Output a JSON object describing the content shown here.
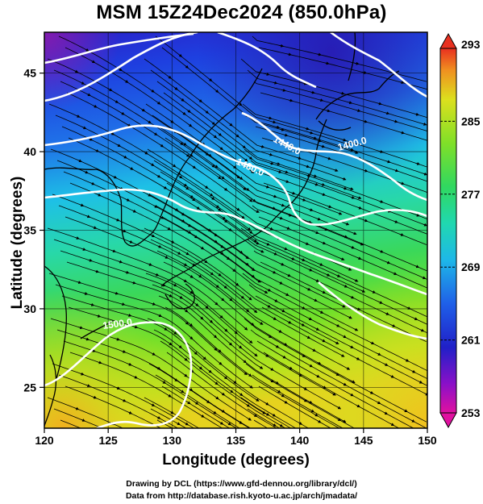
{
  "title": "MSM 15Z24Dec2024 (850.0hPa)",
  "axes": {
    "x_label": "Longitude (degrees)",
    "y_label": "Latitude  (degrees)",
    "x_ticks": [
      "120",
      "125",
      "130",
      "135",
      "140",
      "145",
      "150"
    ],
    "y_ticks": [
      "25",
      "30",
      "35",
      "40",
      "45"
    ],
    "x_range": [
      120,
      150
    ],
    "y_range": [
      22.4,
      47.6
    ]
  },
  "colorbar": {
    "tick_labels": [
      "293",
      "285",
      "277",
      "269",
      "261",
      "253"
    ],
    "range": [
      253,
      293
    ]
  },
  "contour_labels": [
    "1400.0",
    "1440.0",
    "1480.0",
    "1500.0"
  ],
  "credits": {
    "line1": "Drawing by DCL (https://www.gfd-dennou.org/library/dcl/)",
    "line2": "Data from http://database.rish.kyoto-u.ac.jp/arch/jmadata/"
  },
  "colors": {
    "cold": "#1a2fd8",
    "mid_cold": "#1fb8e8",
    "mid": "#2fd89a",
    "warm": "#9ae61e",
    "hot": "#f0b41e",
    "contour": "#ffffff",
    "streamline": "#000000"
  }
}
